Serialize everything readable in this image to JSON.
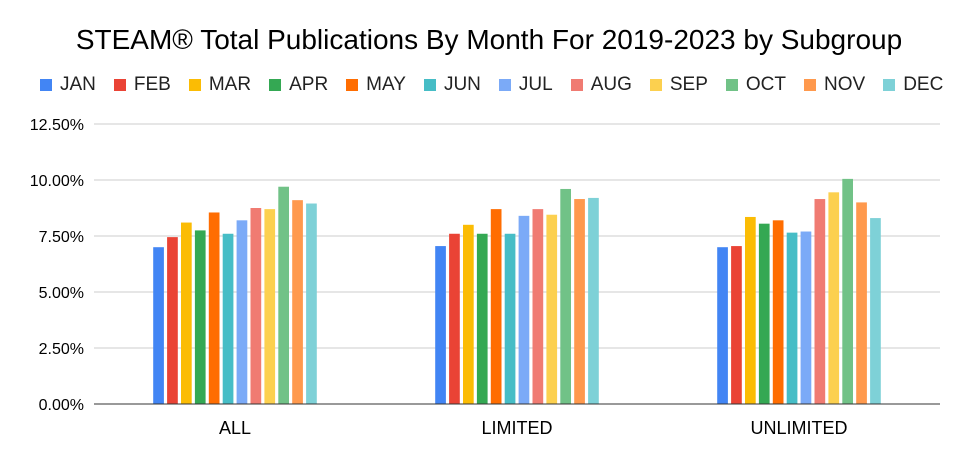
{
  "chart_data": {
    "type": "bar",
    "title": "STEAM® Total Publications By Month For 2019-2023 by Subgroup",
    "xlabel": "",
    "ylabel": "",
    "categories": [
      "ALL",
      "LIMITED",
      "UNLIMITED"
    ],
    "ylim": [
      0,
      12.5
    ],
    "yticks": [
      "0.00%",
      "2.50%",
      "5.00%",
      "7.50%",
      "10.00%",
      "12.50%"
    ],
    "ytick_values": [
      0,
      2.5,
      5,
      7.5,
      10,
      12.5
    ],
    "grid": true,
    "legend_position": "top",
    "series": [
      {
        "name": "JAN",
        "color": "#4285F4",
        "values": [
          7.0,
          7.05,
          7.0
        ]
      },
      {
        "name": "FEB",
        "color": "#EA4335",
        "values": [
          7.45,
          7.6,
          7.05
        ]
      },
      {
        "name": "MAR",
        "color": "#FBBC04",
        "values": [
          8.1,
          8.0,
          8.35
        ]
      },
      {
        "name": "APR",
        "color": "#34A853",
        "values": [
          7.75,
          7.6,
          8.05
        ]
      },
      {
        "name": "MAY",
        "color": "#FF6D01",
        "values": [
          8.55,
          8.7,
          8.2
        ]
      },
      {
        "name": "JUN",
        "color": "#46BDC6",
        "values": [
          7.6,
          7.6,
          7.65
        ]
      },
      {
        "name": "JUL",
        "color": "#7BAAF7",
        "values": [
          8.2,
          8.4,
          7.7
        ]
      },
      {
        "name": "AUG",
        "color": "#F07B72",
        "values": [
          8.75,
          8.7,
          9.15
        ]
      },
      {
        "name": "SEP",
        "color": "#FCD04F",
        "values": [
          8.7,
          8.45,
          9.45
        ]
      },
      {
        "name": "OCT",
        "color": "#71C287",
        "values": [
          9.7,
          9.6,
          10.05
        ]
      },
      {
        "name": "NOV",
        "color": "#FF994D",
        "values": [
          9.1,
          9.15,
          9.0
        ]
      },
      {
        "name": "DEC",
        "color": "#7ED1D7",
        "values": [
          8.95,
          9.2,
          8.3
        ]
      }
    ]
  }
}
